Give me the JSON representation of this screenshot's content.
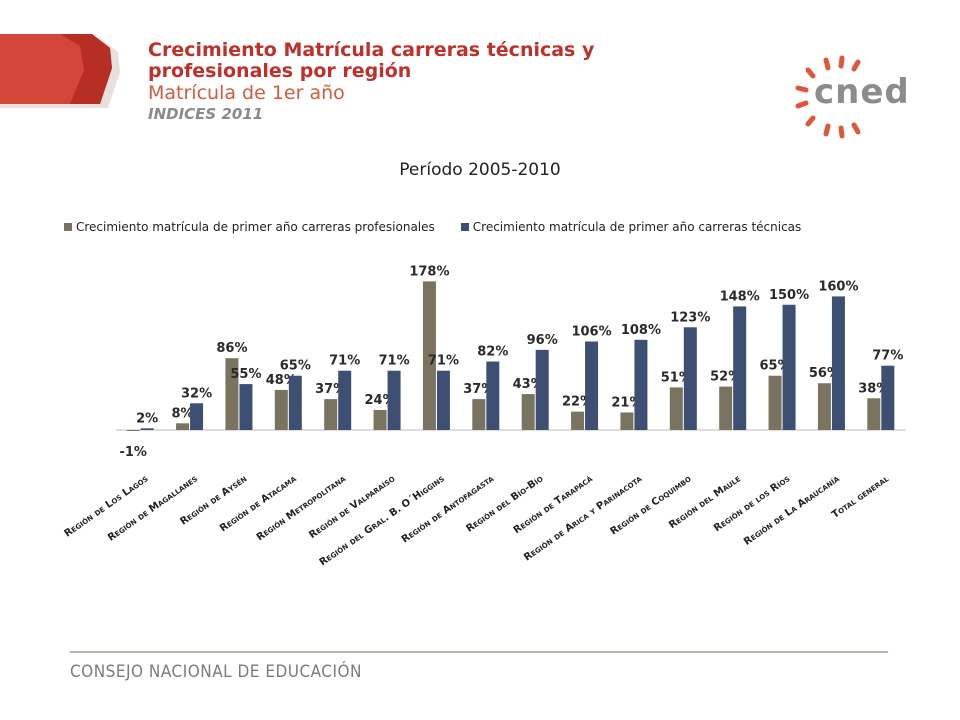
{
  "header": {
    "title_line1": "Crecimiento Matrícula carreras técnicas y",
    "title_line2": "profesionales por región",
    "subtitle": "Matrícula de 1er año",
    "indices": "INDICES 2011"
  },
  "logo": {
    "text": "cned"
  },
  "footer": {
    "text": "CONSEJO NACIONAL DE EDUCACIÓN"
  },
  "colors": {
    "profesionales": "#7a735f",
    "tecnicas": "#3d4f72",
    "accent": "#c0302a"
  },
  "chart_data": {
    "type": "bar",
    "title": "Período 2005-2010",
    "xlabel": "",
    "ylabel": "",
    "legend_position": "top",
    "grid": false,
    "categories": [
      "Región de Los Lagos",
      "Región de Magallanes",
      "Región de Aysén",
      "Región de Atacama",
      "Región Metropolitana",
      "Región de Valparaíso",
      "Región del Gral. B. O´Higgins",
      "Región de Antofagasta",
      "Región del Bío-Bío",
      "Región de Tarapacá",
      "Región de Arica y Parinacota",
      "Región de Coquimbo",
      "Región del Maule",
      "Región de los Ríos",
      "Región de La Araucanía",
      "Total general"
    ],
    "series": [
      {
        "name": "Crecimiento matrícula de primer año carreras profesionales",
        "values": [
          -1,
          8,
          86,
          48,
          37,
          24,
          178,
          37,
          43,
          22,
          21,
          51,
          52,
          65,
          56,
          38
        ],
        "labels": [
          "-1%",
          "8%",
          "86%",
          "48%",
          "37%",
          "24%",
          "178%",
          "37%",
          "43%",
          "22%",
          "21%",
          "51%",
          "52%",
          "65%",
          "56%",
          "38%"
        ]
      },
      {
        "name": "Crecimiento matrícula de primer año carreras técnicas",
        "values": [
          2,
          32,
          55,
          65,
          71,
          71,
          71,
          82,
          96,
          106,
          108,
          123,
          148,
          150,
          160,
          77
        ],
        "labels": [
          "2%",
          "32%",
          "55%",
          "65%",
          "71%",
          "71%",
          "71%",
          "82%",
          "96%",
          "106%",
          "108%",
          "123%",
          "148%",
          "150%",
          "160%",
          "77%"
        ]
      }
    ]
  }
}
